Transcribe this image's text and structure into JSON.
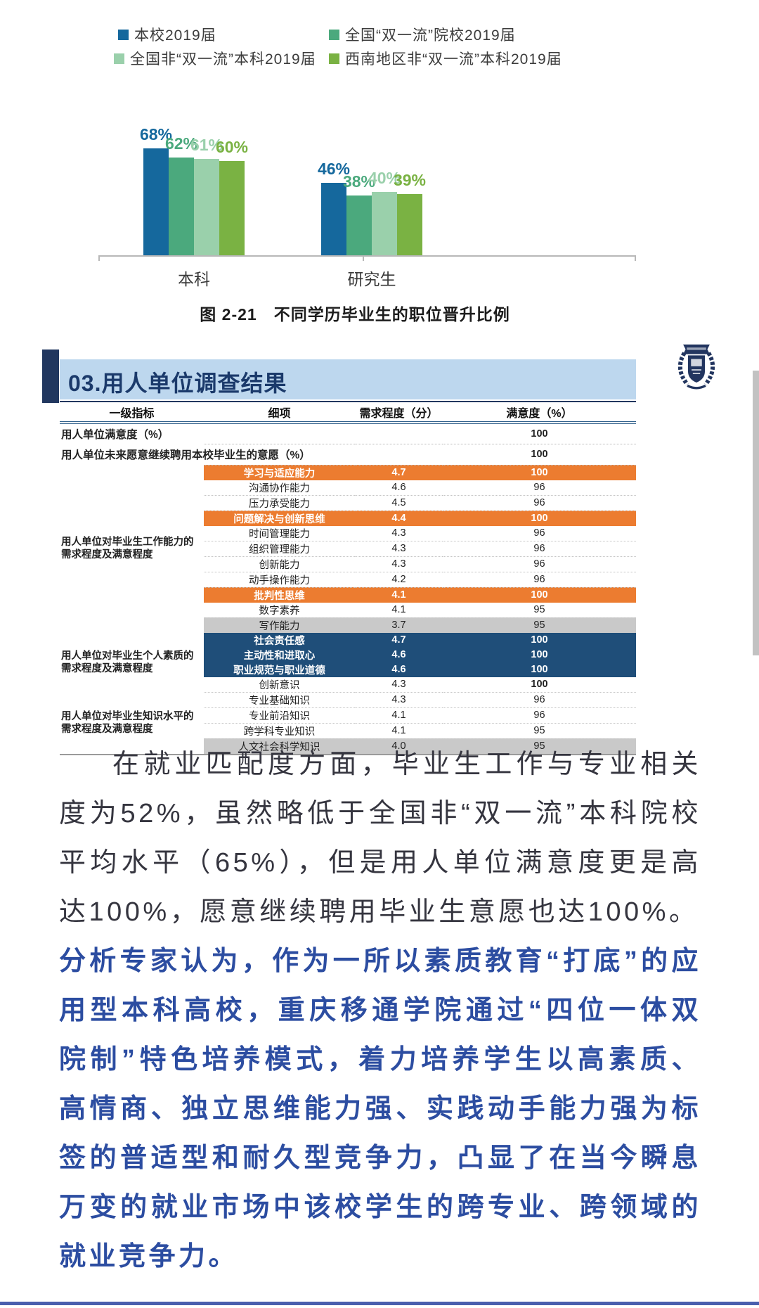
{
  "legend": {
    "items": [
      {
        "label": "本校2019届",
        "color": "#15689d"
      },
      {
        "label": "全国“双一流”院校2019届",
        "color": "#4ba97d"
      },
      {
        "label": "全国非“双一流”本科2019届",
        "color": "#9ad0ab"
      },
      {
        "label": "西南地区非“双一流”本科2019届",
        "color": "#7ab243"
      }
    ]
  },
  "chart_data": {
    "type": "bar",
    "categories": [
      "本科",
      "研究生"
    ],
    "series": [
      {
        "name": "本校2019届",
        "color": "#15689d",
        "values": [
          68,
          46
        ]
      },
      {
        "name": "全国“双一流”院校2019届",
        "color": "#4ba97d",
        "values": [
          62,
          38
        ]
      },
      {
        "name": "全国非“双一流”本科2019届",
        "color": "#9ad0ab",
        "values": [
          61,
          40
        ]
      },
      {
        "name": "西南地区非“双一流”本科2019届",
        "color": "#7ab243",
        "values": [
          60,
          39
        ]
      }
    ],
    "value_suffix": "%",
    "title": "图 2-21  不同学历毕业生的职位晋升比例",
    "xlabel": "",
    "ylabel": "",
    "ylim": [
      0,
      100
    ],
    "grid": false,
    "legend_position": "top"
  },
  "figure": {
    "caption": "图 2-21　不同学历毕业生的职位晋升比例"
  },
  "section": {
    "title": "03.用人单位调查结果"
  },
  "logo": {
    "name": "university-emblem"
  },
  "table": {
    "columns": [
      "一级指标",
      "细项",
      "需求程度（分）",
      "满意度（%）"
    ],
    "simple_rows": [
      {
        "indicator": "用人单位满意度（%）",
        "satisfaction": "100"
      },
      {
        "indicator": "用人单位未来愿意继续聘用本校毕业生的意愿（%）",
        "satisfaction": "100"
      }
    ],
    "groups": [
      {
        "indicator": "用人单位对毕业生工作能力的需求程度及满意程度",
        "items": [
          {
            "name": "学习与适应能力",
            "score": "4.7",
            "satisfaction": "100",
            "highlight": "orange"
          },
          {
            "name": "沟通协作能力",
            "score": "4.6",
            "satisfaction": "96",
            "highlight": "none"
          },
          {
            "name": "压力承受能力",
            "score": "4.5",
            "satisfaction": "96",
            "highlight": "none"
          },
          {
            "name": "问题解决与创新思维",
            "score": "4.4",
            "satisfaction": "100",
            "highlight": "orange"
          },
          {
            "name": "时间管理能力",
            "score": "4.3",
            "satisfaction": "96",
            "highlight": "none"
          },
          {
            "name": "组织管理能力",
            "score": "4.3",
            "satisfaction": "96",
            "highlight": "none"
          },
          {
            "name": "创新能力",
            "score": "4.3",
            "satisfaction": "96",
            "highlight": "none"
          },
          {
            "name": "动手操作能力",
            "score": "4.2",
            "satisfaction": "96",
            "highlight": "none"
          },
          {
            "name": "批判性思维",
            "score": "4.1",
            "satisfaction": "100",
            "highlight": "orange"
          },
          {
            "name": "数字素养",
            "score": "4.1",
            "satisfaction": "95",
            "highlight": "none"
          },
          {
            "name": "写作能力",
            "score": "3.7",
            "satisfaction": "95",
            "highlight": "gray"
          }
        ]
      },
      {
        "indicator": "用人单位对毕业生个人素质的需求程度及满意程度",
        "items": [
          {
            "name": "社会责任感",
            "score": "4.7",
            "satisfaction": "100",
            "highlight": "navy"
          },
          {
            "name": "主动性和进取心",
            "score": "4.6",
            "satisfaction": "100",
            "highlight": "navy"
          },
          {
            "name": "职业规范与职业道德",
            "score": "4.6",
            "satisfaction": "100",
            "highlight": "navy"
          },
          {
            "name": "创新意识",
            "score": "4.3",
            "satisfaction": "100",
            "highlight": "none"
          }
        ]
      },
      {
        "indicator": "用人单位对毕业生知识水平的需求程度及满意程度",
        "items": [
          {
            "name": "专业基础知识",
            "score": "4.3",
            "satisfaction": "96",
            "highlight": "none"
          },
          {
            "name": "专业前沿知识",
            "score": "4.1",
            "satisfaction": "96",
            "highlight": "none"
          },
          {
            "name": "跨学科专业知识",
            "score": "4.1",
            "satisfaction": "95",
            "highlight": "none"
          },
          {
            "name": "人文社会科学知识",
            "score": "4.0",
            "satisfaction": "95",
            "highlight": "gray"
          }
        ]
      }
    ]
  },
  "paragraphs": {
    "p1": "在就业匹配度方面，毕业生工作与专业相关度为52%，虽然略低于全国非“双一流”本科院校平均水平（65%），但是用人单位满意度更是高达100%，愿意继续聘用毕业生意愿也达100%。",
    "p2": "分析专家认为，作为一所以素质教育“打底”的应用型本科高校，重庆移通学院通过“四位一体双院制”特色培养模式，着力培养学生以高素质、高情商、独立思维能力强、实践动手能力强为标签的普适型和耐久型竞争力，凸显了在当今瞬息万变的就业市场中该校学生的跨专业、跨领域的就业竞争力。"
  }
}
